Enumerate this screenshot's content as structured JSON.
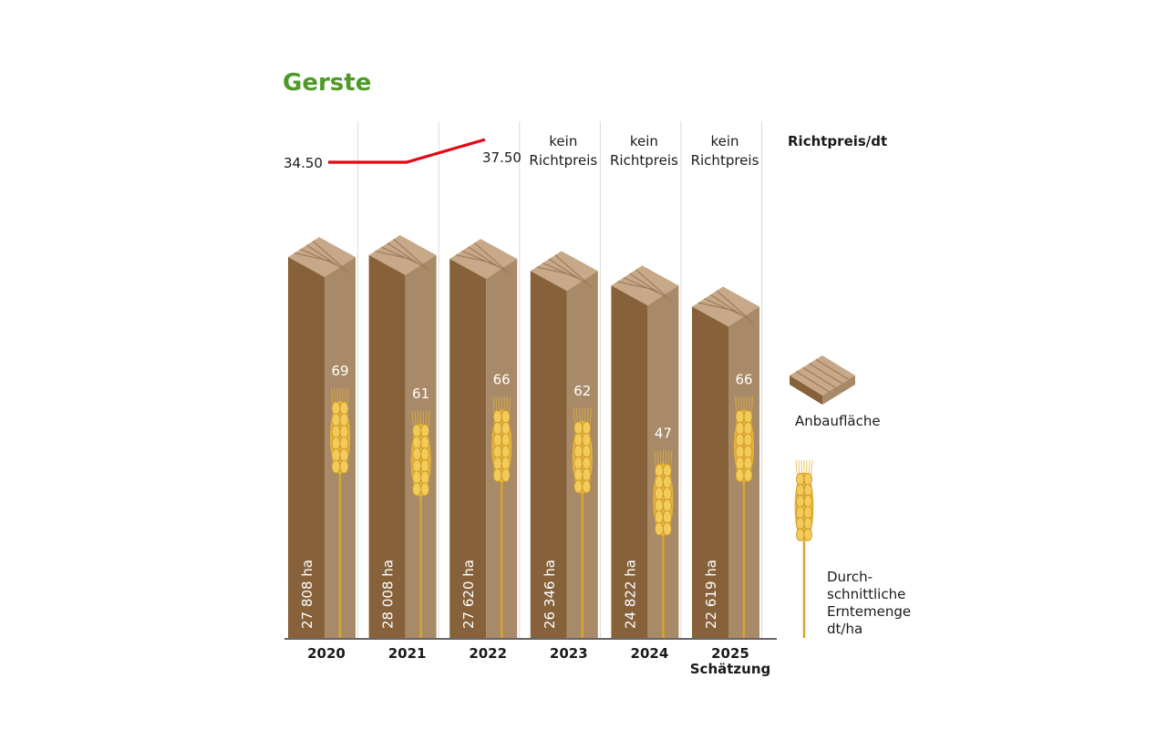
{
  "title": "Gerste",
  "colors": {
    "title": "#4e9a26",
    "price_line": "#e30613",
    "bar_front": "#86613a",
    "bar_side": "#a88a68",
    "bar_top": "#c7a888",
    "bar_stripe": "#9c7c5c",
    "wheat": "#e6b43a",
    "stem": "#d4a52f",
    "gridline": "#d9d9d9"
  },
  "icons": {
    "area": "field-block-icon",
    "yield": "wheat-ear-icon"
  },
  "price_header": "Richtpreis/dt",
  "legend": {
    "area_label": "Anbaufläche",
    "yield_label": [
      "Durch-",
      "schnittliche",
      "Erntemenge",
      "dt/ha"
    ]
  },
  "chart_data": {
    "type": "bar",
    "categories": [
      "2020",
      "2021",
      "2022",
      "2023",
      "2024",
      "2025"
    ],
    "category_sublabels": [
      "",
      "",
      "",
      "",
      "",
      "Schätzung"
    ],
    "area_ha": [
      27808,
      28008,
      27620,
      26346,
      24822,
      22619
    ],
    "area_labels": [
      "27 808 ha",
      "28 008 ha",
      "27 620 ha",
      "26 346 ha",
      "24 822 ha",
      "22 619 ha"
    ],
    "yield_dt_ha": [
      69,
      61,
      66,
      62,
      47,
      66
    ],
    "price": {
      "values": [
        34.5,
        34.5,
        37.5,
        null,
        null,
        null
      ],
      "value_labels": [
        "34.50",
        "",
        "37.50",
        "",
        "",
        ""
      ],
      "no_price_text": [
        "kein",
        "Richtpreis"
      ]
    },
    "area_range_ha": [
      0,
      28008
    ],
    "yield_range_dt_ha": [
      0,
      69
    ]
  }
}
